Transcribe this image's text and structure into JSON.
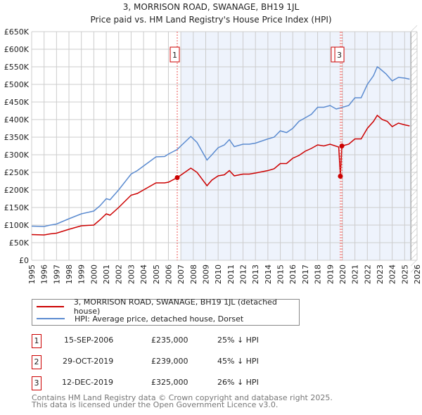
{
  "title": "3, MORRISON ROAD, SWANAGE, BH19 1JL",
  "subtitle": "Price paid vs. HM Land Registry's House Price Index (HPI)",
  "chart_data": {
    "type": "line",
    "title": "3, MORRISON ROAD, SWANAGE, BH19 1JL",
    "subtitle": "Price paid vs. HM Land Registry's House Price Index (HPI)",
    "xlim": [
      1995,
      2026
    ],
    "ylim": [
      0,
      650000
    ],
    "grid": true,
    "x_ticks": [
      "1995",
      "1996",
      "1997",
      "1998",
      "1999",
      "2000",
      "2001",
      "2002",
      "2003",
      "2004",
      "2005",
      "2006",
      "2007",
      "2008",
      "2009",
      "2010",
      "2011",
      "2012",
      "2013",
      "2014",
      "2015",
      "2016",
      "2017",
      "2018",
      "2019",
      "2020",
      "2021",
      "2022",
      "2023",
      "2024",
      "2025",
      "2026"
    ],
    "y_ticks": [
      {
        "value": 0,
        "label": "£0"
      },
      {
        "value": 50000,
        "label": "£50K"
      },
      {
        "value": 100000,
        "label": "£100K"
      },
      {
        "value": 150000,
        "label": "£150K"
      },
      {
        "value": 200000,
        "label": "£200K"
      },
      {
        "value": 250000,
        "label": "£250K"
      },
      {
        "value": 300000,
        "label": "£300K"
      },
      {
        "value": 350000,
        "label": "£350K"
      },
      {
        "value": 400000,
        "label": "£400K"
      },
      {
        "value": 450000,
        "label": "£450K"
      },
      {
        "value": 500000,
        "label": "£500K"
      },
      {
        "value": 550000,
        "label": "£550K"
      },
      {
        "value": 600000,
        "label": "£600K"
      },
      {
        "value": 650000,
        "label": "£650K"
      }
    ],
    "series": [
      {
        "name": "3, MORRISON ROAD, SWANAGE, BH19 1JL (detached house)",
        "color": "#cc0000",
        "x": [
          1995,
          1996,
          1996.5,
          1997,
          1998,
          1999,
          2000,
          2000.5,
          2001,
          2001.3,
          2002,
          2003,
          2003.5,
          2004,
          2005,
          2005.7,
          2006,
          2006.71,
          2007,
          2007.8,
          2008.3,
          2009.1,
          2009.5,
          2010,
          2010.5,
          2010.9,
          2011.3,
          2012,
          2012.5,
          2013,
          2014,
          2014.5,
          2015,
          2015.5,
          2016,
          2016.5,
          2017,
          2017.5,
          2018,
          2018.5,
          2019,
          2019.7,
          2019.83,
          2019.95,
          2020.5,
          2021,
          2021.5,
          2022,
          2022.5,
          2022.8,
          2023.2,
          2023.6,
          2024,
          2024.5,
          2025,
          2025.4
        ],
        "values": [
          73000,
          72000,
          75000,
          77000,
          88000,
          98000,
          100000,
          115000,
          132000,
          128000,
          150000,
          185000,
          190000,
          200000,
          220000,
          220000,
          222000,
          235000,
          242000,
          262000,
          250000,
          212000,
          228000,
          240000,
          243000,
          255000,
          240000,
          245000,
          245000,
          248000,
          255000,
          260000,
          275000,
          275000,
          290000,
          298000,
          310000,
          318000,
          328000,
          325000,
          330000,
          322000,
          239000,
          325000,
          330000,
          345000,
          345000,
          375000,
          395000,
          412000,
          400000,
          395000,
          380000,
          390000,
          385000,
          382000
        ]
      },
      {
        "name": "HPI: Average price, detached house, Dorset",
        "color": "#5b8bd0",
        "x": [
          1995,
          1996,
          1996.5,
          1997,
          1998,
          1999,
          2000,
          2000.5,
          2001,
          2001.3,
          2002,
          2003,
          2003.5,
          2004,
          2005,
          2005.7,
          2006,
          2006.71,
          2007,
          2007.8,
          2008.3,
          2009.1,
          2009.5,
          2010,
          2010.5,
          2010.9,
          2011.3,
          2012,
          2012.5,
          2013,
          2014,
          2014.5,
          2015,
          2015.5,
          2016,
          2016.5,
          2017,
          2017.5,
          2018,
          2018.5,
          2019,
          2019.5,
          2020,
          2020.5,
          2021,
          2021.5,
          2022,
          2022.5,
          2022.8,
          2023,
          2023.5,
          2024,
          2024.5,
          2025,
          2025.4
        ],
        "values": [
          97000,
          96000,
          100000,
          103000,
          118000,
          132000,
          140000,
          155000,
          175000,
          172000,
          200000,
          245000,
          255000,
          268000,
          294000,
          295000,
          302000,
          315000,
          325000,
          352000,
          335000,
          285000,
          300000,
          320000,
          328000,
          343000,
          323000,
          330000,
          330000,
          333000,
          345000,
          350000,
          368000,
          363000,
          375000,
          395000,
          405000,
          415000,
          435000,
          435000,
          440000,
          430000,
          435000,
          440000,
          462000,
          462000,
          500000,
          525000,
          550000,
          545000,
          530000,
          510000,
          520000,
          518000,
          515000
        ]
      }
    ],
    "sales": [
      {
        "label": "1",
        "x": 2006.71,
        "value": 235000,
        "date": "15-SEP-2006",
        "price": "£235,000",
        "hpi": "25% ↓ HPI"
      },
      {
        "label": "2",
        "x": 2019.83,
        "value": 239000,
        "date": "29-OCT-2019",
        "price": "£239,000",
        "hpi": "45% ↓ HPI"
      },
      {
        "label": "3",
        "x": 2019.95,
        "value": 325000,
        "date": "12-DEC-2019",
        "price": "£325,000",
        "hpi": "26% ↓ HPI"
      }
    ],
    "shaded_ranges": [
      [
        2007.0,
        2019.83
      ],
      [
        2020.0,
        2025.5
      ]
    ],
    "hatched_from": 2025.5,
    "legend_placement": "below"
  },
  "legend": {
    "items": [
      {
        "label": "3, MORRISON ROAD, SWANAGE, BH19 1JL (detached house)",
        "color": "#cc0000"
      },
      {
        "label": "HPI: Average price, detached house, Dorset",
        "color": "#5b8bd0"
      }
    ]
  },
  "footer": {
    "line1": "Contains HM Land Registry data © Crown copyright and database right 2025.",
    "line2": "This data is licensed under the Open Government Licence v3.0."
  }
}
